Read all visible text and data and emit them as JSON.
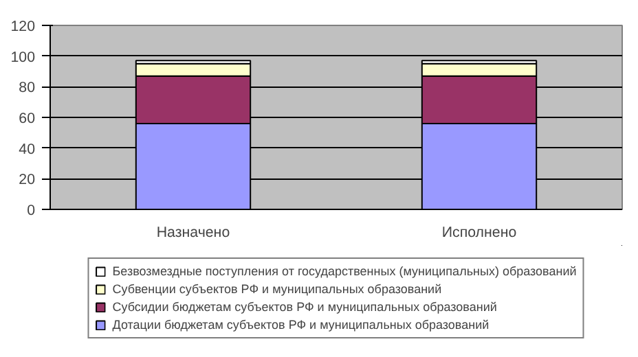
{
  "chart_data": {
    "type": "bar",
    "stacked": true,
    "categories": [
      "Назначено",
      "Исполнено"
    ],
    "series": [
      {
        "name": "Дотации бюджетам субъектов РФ и муниципальных образований",
        "color": "#9999ff",
        "values": [
          56,
          56
        ]
      },
      {
        "name": "Субсидии бюджетам субъектов РФ и муниципальных образований",
        "color": "#993366",
        "values": [
          31,
          31
        ]
      },
      {
        "name": "Субвенции субъектов РФ и муниципальных образований",
        "color": "#ffffcc",
        "values": [
          8,
          8
        ]
      },
      {
        "name": "Безвозмездные поступления от государственных (муниципальных) образований",
        "color": "#ffffff",
        "values": [
          2,
          2
        ]
      }
    ],
    "ylim": [
      0,
      120
    ],
    "yticks": [
      0,
      20,
      40,
      60,
      80,
      100,
      120
    ],
    "grid": "y",
    "legend": "bottom"
  }
}
